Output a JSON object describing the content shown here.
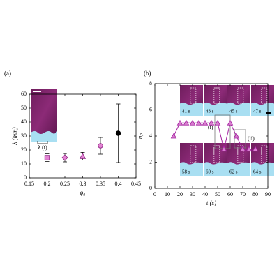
{
  "chart_data": [
    {
      "type": "scatter",
      "panel_label": "(a)",
      "x_label": "ϕ₀",
      "y_label": "λ (mm)",
      "inset_label": "λ (t)",
      "x": [
        0.2,
        0.25,
        0.3,
        0.35,
        0.4
      ],
      "values": [
        14.5,
        14.5,
        15.5,
        23,
        32
      ],
      "errors": [
        2.8,
        3,
        2.8,
        6,
        21
      ],
      "markers": [
        "square",
        "diamond",
        "triangle",
        "circle",
        "circle"
      ],
      "colors": [
        "#e283d2",
        "#e283d2",
        "#e283d2",
        "#e283d2",
        "#000000"
      ],
      "xlim": [
        0.15,
        0.45
      ],
      "xticks": [
        0.15,
        0.2,
        0.25,
        0.3,
        0.35,
        0.4,
        0.45
      ],
      "ylim": [
        0,
        60
      ],
      "yticks": [
        0,
        10,
        20,
        30,
        40,
        50,
        60
      ]
    },
    {
      "type": "line",
      "panel_label": "(b)",
      "x_label": "t (s)",
      "y_label": "nₚ",
      "x": [
        15,
        20,
        25,
        30,
        35,
        40,
        45,
        50,
        55,
        60,
        65,
        70,
        75,
        80
      ],
      "values": [
        4,
        5,
        5,
        5,
        5,
        5,
        5,
        5,
        3,
        5,
        4,
        3,
        3,
        3
      ],
      "color": "#a3209f",
      "inset_labels": [
        "41 s",
        "43 s",
        "45 s",
        "47 s",
        "58 s",
        "60 s",
        "62 s",
        "64 s"
      ],
      "annotations": [
        "(i)",
        "(ii)"
      ],
      "xlim": [
        0,
        90
      ],
      "xticks": [
        0,
        10,
        20,
        30,
        40,
        50,
        60,
        70,
        80,
        90
      ],
      "ylim": [
        0,
        8
      ],
      "yticks": [
        0,
        2,
        4,
        6,
        8
      ]
    }
  ]
}
